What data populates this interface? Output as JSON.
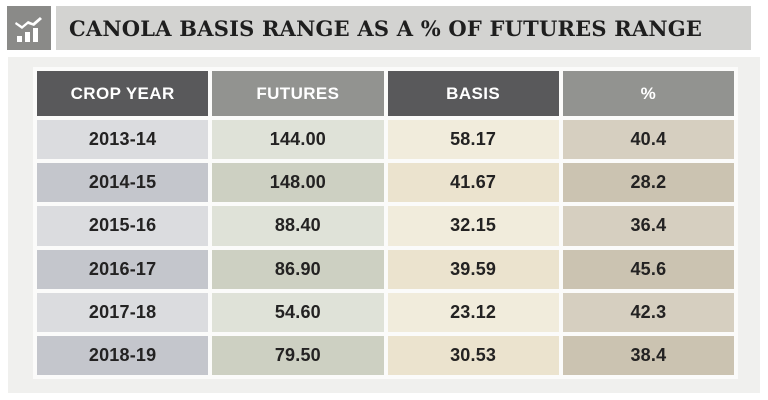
{
  "title": "CANOLA BASIS RANGE AS A % OF FUTURES RANGE",
  "icon": {
    "name": "bar-chart-trend-icon"
  },
  "colors": {
    "icon_box": "#8a8a88",
    "title_bar": "#d3d3d1",
    "panel": "#f0f0ee",
    "header_dark": "#59595b",
    "header_medium": "#929390",
    "text": "#232222"
  },
  "table": {
    "columns": [
      {
        "key": "crop_year",
        "label": "CROP YEAR"
      },
      {
        "key": "futures",
        "label": "FUTURES"
      },
      {
        "key": "basis",
        "label": "BASIS"
      },
      {
        "key": "percent",
        "label": "%"
      }
    ],
    "rows": [
      {
        "crop_year": "2013-14",
        "futures": "144.00",
        "basis": "58.17",
        "percent": "40.4"
      },
      {
        "crop_year": "2014-15",
        "futures": "148.00",
        "basis": "41.67",
        "percent": "28.2"
      },
      {
        "crop_year": "2015-16",
        "futures": "88.40",
        "basis": "32.15",
        "percent": "36.4"
      },
      {
        "crop_year": "2016-17",
        "futures": "86.90",
        "basis": "39.59",
        "percent": "45.6"
      },
      {
        "crop_year": "2017-18",
        "futures": "54.60",
        "basis": "23.12",
        "percent": "42.3"
      },
      {
        "crop_year": "2018-19",
        "futures": "79.50",
        "basis": "30.53",
        "percent": "38.4"
      }
    ]
  },
  "chart_data": {
    "type": "table",
    "title": "CANOLA BASIS RANGE AS A % OF FUTURES RANGE",
    "columns": [
      "CROP YEAR",
      "FUTURES",
      "BASIS",
      "%"
    ],
    "rows": [
      [
        "2013-14",
        144.0,
        58.17,
        40.4
      ],
      [
        "2014-15",
        148.0,
        41.67,
        28.2
      ],
      [
        "2015-16",
        88.4,
        32.15,
        36.4
      ],
      [
        "2016-17",
        86.9,
        39.59,
        45.6
      ],
      [
        "2017-18",
        54.6,
        23.12,
        42.3
      ],
      [
        "2018-19",
        79.5,
        30.53,
        38.4
      ]
    ]
  }
}
